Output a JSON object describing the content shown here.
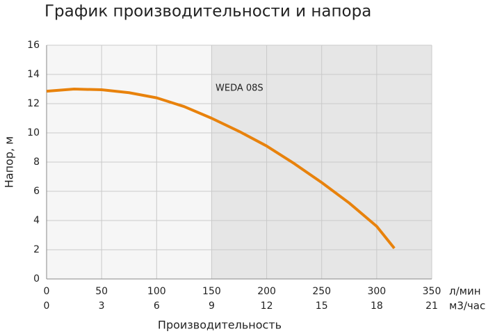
{
  "chart_data": {
    "type": "line",
    "title": "График производительности и напора",
    "x_label": "Производительность",
    "y_label": "Напор, м",
    "x_unit": "л/мин",
    "x2_unit": "м3/час",
    "x": [
      0,
      25,
      50,
      75,
      100,
      125,
      150,
      175,
      200,
      225,
      250,
      275,
      300,
      316
    ],
    "series": [
      {
        "name": "WEDA 08S",
        "color": "#e8820c",
        "values": [
          12.85,
          13.0,
          12.95,
          12.75,
          12.4,
          11.8,
          11.0,
          10.1,
          9.1,
          7.9,
          6.6,
          5.2,
          3.6,
          2.1
        ]
      }
    ],
    "xlim": [
      0,
      350
    ],
    "xticks": [
      0,
      50,
      100,
      150,
      200,
      250,
      300,
      350
    ],
    "x2lim": [
      0,
      21
    ],
    "x2ticks": [
      0,
      3,
      6,
      9,
      12,
      15,
      18,
      21
    ],
    "ylim": [
      0,
      16
    ],
    "yticks": [
      0,
      2,
      4,
      6,
      8,
      10,
      12,
      14,
      16
    ],
    "grid": true
  }
}
